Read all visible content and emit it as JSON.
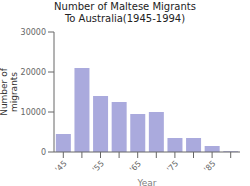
{
  "chart_data": {
    "type": "bar",
    "title": "Number of Maltese Migrants\nTo Australia(1945-1994)",
    "xlabel": "Year",
    "ylabel": "Number of\nmigrants",
    "categories": [
      "'45",
      null,
      "'55",
      null,
      "'65",
      null,
      "'75",
      null,
      "'85",
      null
    ],
    "values": [
      4500,
      21000,
      14000,
      12500,
      9500,
      10000,
      3500,
      3500,
      1500,
      200
    ],
    "color": "#aaaadd",
    "ylim": [
      0,
      30000
    ],
    "yticks": [
      0,
      10000,
      20000,
      30000
    ],
    "grid": false
  }
}
